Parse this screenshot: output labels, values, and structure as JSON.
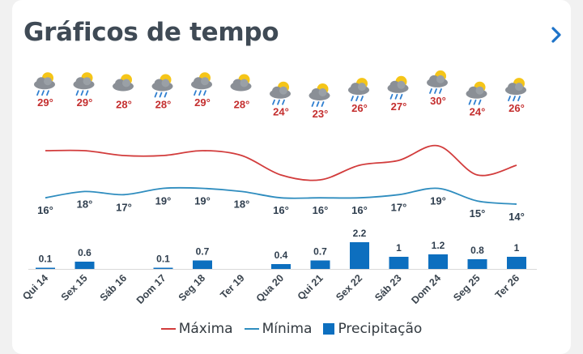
{
  "header": {
    "title": "Gráficos de tempo"
  },
  "colors": {
    "max": "#d23c3c",
    "min": "#2f8dbf",
    "precip": "#0d6fbf",
    "text_max": "#c42e2e",
    "text_min": "#2f3e4e"
  },
  "legend": {
    "max_label": "Máxima",
    "min_label": "Mínima",
    "precip_label": "Precipitação"
  },
  "chart_data": {
    "type": "line+bar",
    "categories": [
      "Qui 14",
      "Sex 15",
      "Sáb 16",
      "Dom 17",
      "Seg 18",
      "Ter 19",
      "Qua 20",
      "Qui 21",
      "Sex 22",
      "Sáb 23",
      "Dom 24",
      "Seg 25",
      "Ter 26"
    ],
    "weather_icons": [
      "cloud-sun-rain-icon",
      "cloud-sun-rain-icon",
      "cloud-sun-icon",
      "cloud-sun-rain-icon",
      "cloud-sun-rain-icon",
      "cloud-sun-icon",
      "cloud-sun-rain-icon",
      "cloud-sun-rain-icon",
      "cloud-sun-rain-icon",
      "cloud-sun-rain-icon",
      "cloud-sun-rain-icon",
      "cloud-sun-rain-icon",
      "cloud-sun-rain-icon"
    ],
    "series": [
      {
        "name": "Máxima",
        "kind": "line",
        "values": [
          29,
          29,
          28,
          28,
          29,
          28,
          24,
          23,
          26,
          27,
          30,
          24,
          26
        ],
        "labels": [
          "29°",
          "29°",
          "28°",
          "28°",
          "29°",
          "28°",
          "24°",
          "23°",
          "26°",
          "27°",
          "30°",
          "24°",
          "26°"
        ]
      },
      {
        "name": "Mínima",
        "kind": "line",
        "values": [
          16,
          18,
          17,
          19,
          19,
          18,
          16,
          16,
          16,
          17,
          19,
          15,
          14
        ],
        "labels": [
          "16°",
          "18°",
          "17°",
          "19°",
          "19°",
          "18°",
          "16°",
          "16°",
          "16°",
          "17°",
          "19°",
          "15°",
          "14°"
        ]
      },
      {
        "name": "Precipitação",
        "kind": "bar",
        "values": [
          0.1,
          0.6,
          0,
          0.1,
          0.7,
          0,
          0.4,
          0.7,
          2.2,
          1,
          1.2,
          0.8,
          1
        ],
        "labels": [
          "0.1",
          "0.6",
          "",
          "0.1",
          "0.7",
          "",
          "0.4",
          "0.7",
          "2.2",
          "1",
          "1.2",
          "0.8",
          "1"
        ]
      }
    ]
  }
}
